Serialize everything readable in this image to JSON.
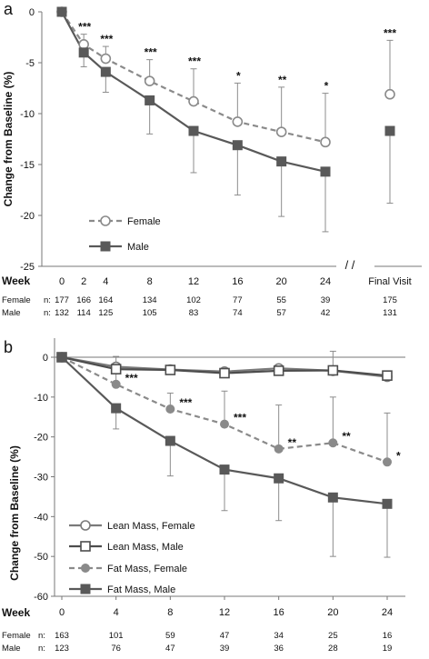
{
  "chart_data": [
    {
      "panel_label": "a",
      "type": "line",
      "ylabel": "Change from Baseline (%)",
      "xlabel": "Week",
      "ylim": [
        -25,
        0
      ],
      "yticks": [
        "0",
        "-5",
        "-10",
        "-15",
        "-20",
        "-25"
      ],
      "x": [
        0,
        2,
        4,
        8,
        12,
        16,
        20,
        24
      ],
      "xtick_labels": [
        "0",
        "2",
        "4",
        "8",
        "12",
        "16",
        "20",
        "24"
      ],
      "axis_break": "/ /",
      "final_visit_label": "Final Visit",
      "series": [
        {
          "name": "Female",
          "color": "#8a8a8a",
          "style": "dashed",
          "marker": "open-circle",
          "values": [
            0,
            -3.2,
            -4.6,
            -6.8,
            -8.8,
            -10.8,
            -11.8,
            -12.8
          ],
          "final_visit": -8.1,
          "upper_error": [
            0,
            -2.2,
            -3.4,
            -4.7,
            -5.6,
            -7.0,
            -7.4,
            -8.0
          ],
          "final_visit_upper_error": -2.8
        },
        {
          "name": "Male",
          "color": "#595959",
          "style": "solid",
          "marker": "filled-square",
          "values": [
            0,
            -4.0,
            -5.9,
            -8.7,
            -11.7,
            -13.1,
            -14.7,
            -15.7
          ],
          "final_visit": -11.7,
          "lower_error": [
            0,
            -5.4,
            -7.9,
            -12.0,
            -15.8,
            -18.0,
            -20.1,
            -21.6
          ],
          "final_visit_lower_error": -18.8
        }
      ],
      "significance": [
        "",
        "***",
        "***",
        "***",
        "***",
        "*",
        "**",
        "*"
      ],
      "final_visit_significance": "***",
      "n_header": "n:",
      "n_rows": [
        {
          "label": "Female",
          "values": [
            "177",
            "166",
            "164",
            "134",
            "102",
            "77",
            "55",
            "39"
          ],
          "final": "175"
        },
        {
          "label": "Male",
          "values": [
            "132",
            "114",
            "125",
            "105",
            "83",
            "74",
            "57",
            "42"
          ],
          "final": "131"
        }
      ]
    },
    {
      "panel_label": "b",
      "type": "line",
      "ylabel": "Change from Baseline (%)",
      "xlabel": "Week",
      "ylim": [
        -60,
        0
      ],
      "yticks": [
        "0",
        "-10",
        "-20",
        "-30",
        "-40",
        "-50",
        "-60"
      ],
      "x": [
        0,
        4,
        8,
        12,
        16,
        20,
        24
      ],
      "xtick_labels": [
        "0",
        "4",
        "8",
        "12",
        "16",
        "20",
        "24"
      ],
      "series": [
        {
          "name": "Lean Mass, Female",
          "color": "#7a7a7a",
          "style": "solid",
          "marker": "open-circle",
          "values": [
            0,
            -2.4,
            -3.1,
            -3.6,
            -2.8,
            -3.4,
            -4.9
          ]
        },
        {
          "name": "Lean Mass, Male",
          "color": "#4d4d4d",
          "style": "solid",
          "marker": "open-square",
          "values": [
            0,
            -3.0,
            -3.2,
            -4.0,
            -3.4,
            -3.3,
            -4.6
          ],
          "upper_error": [
            0,
            0.2,
            0,
            0,
            0,
            1.5,
            0
          ]
        },
        {
          "name": "Fat Mass, Female",
          "color": "#8a8a8a",
          "style": "dashed",
          "marker": "filled-circle",
          "values": [
            0,
            -6.8,
            -13.0,
            -16.8,
            -23.0,
            -21.5,
            -26.3
          ],
          "upper_error": [
            0,
            -3.5,
            -9.0,
            -8.5,
            -12.0,
            -10.0,
            -14.0
          ]
        },
        {
          "name": "Fat Mass, Male",
          "color": "#595959",
          "style": "solid",
          "marker": "filled-square",
          "values": [
            0,
            -12.8,
            -21.0,
            -28.2,
            -30.4,
            -35.2,
            -36.8
          ],
          "lower_error": [
            0,
            -18.0,
            -29.8,
            -38.5,
            -41.0,
            -50.0,
            -50.2
          ]
        }
      ],
      "significance": [
        "",
        "***",
        "***",
        "***",
        "**",
        "**",
        "*"
      ],
      "n_header": "n:",
      "n_rows": [
        {
          "label": "Female",
          "values": [
            "163",
            "101",
            "59",
            "47",
            "34",
            "25",
            "16"
          ]
        },
        {
          "label": "Male",
          "values": [
            "123",
            "76",
            "47",
            "39",
            "36",
            "28",
            "19"
          ]
        }
      ]
    }
  ]
}
